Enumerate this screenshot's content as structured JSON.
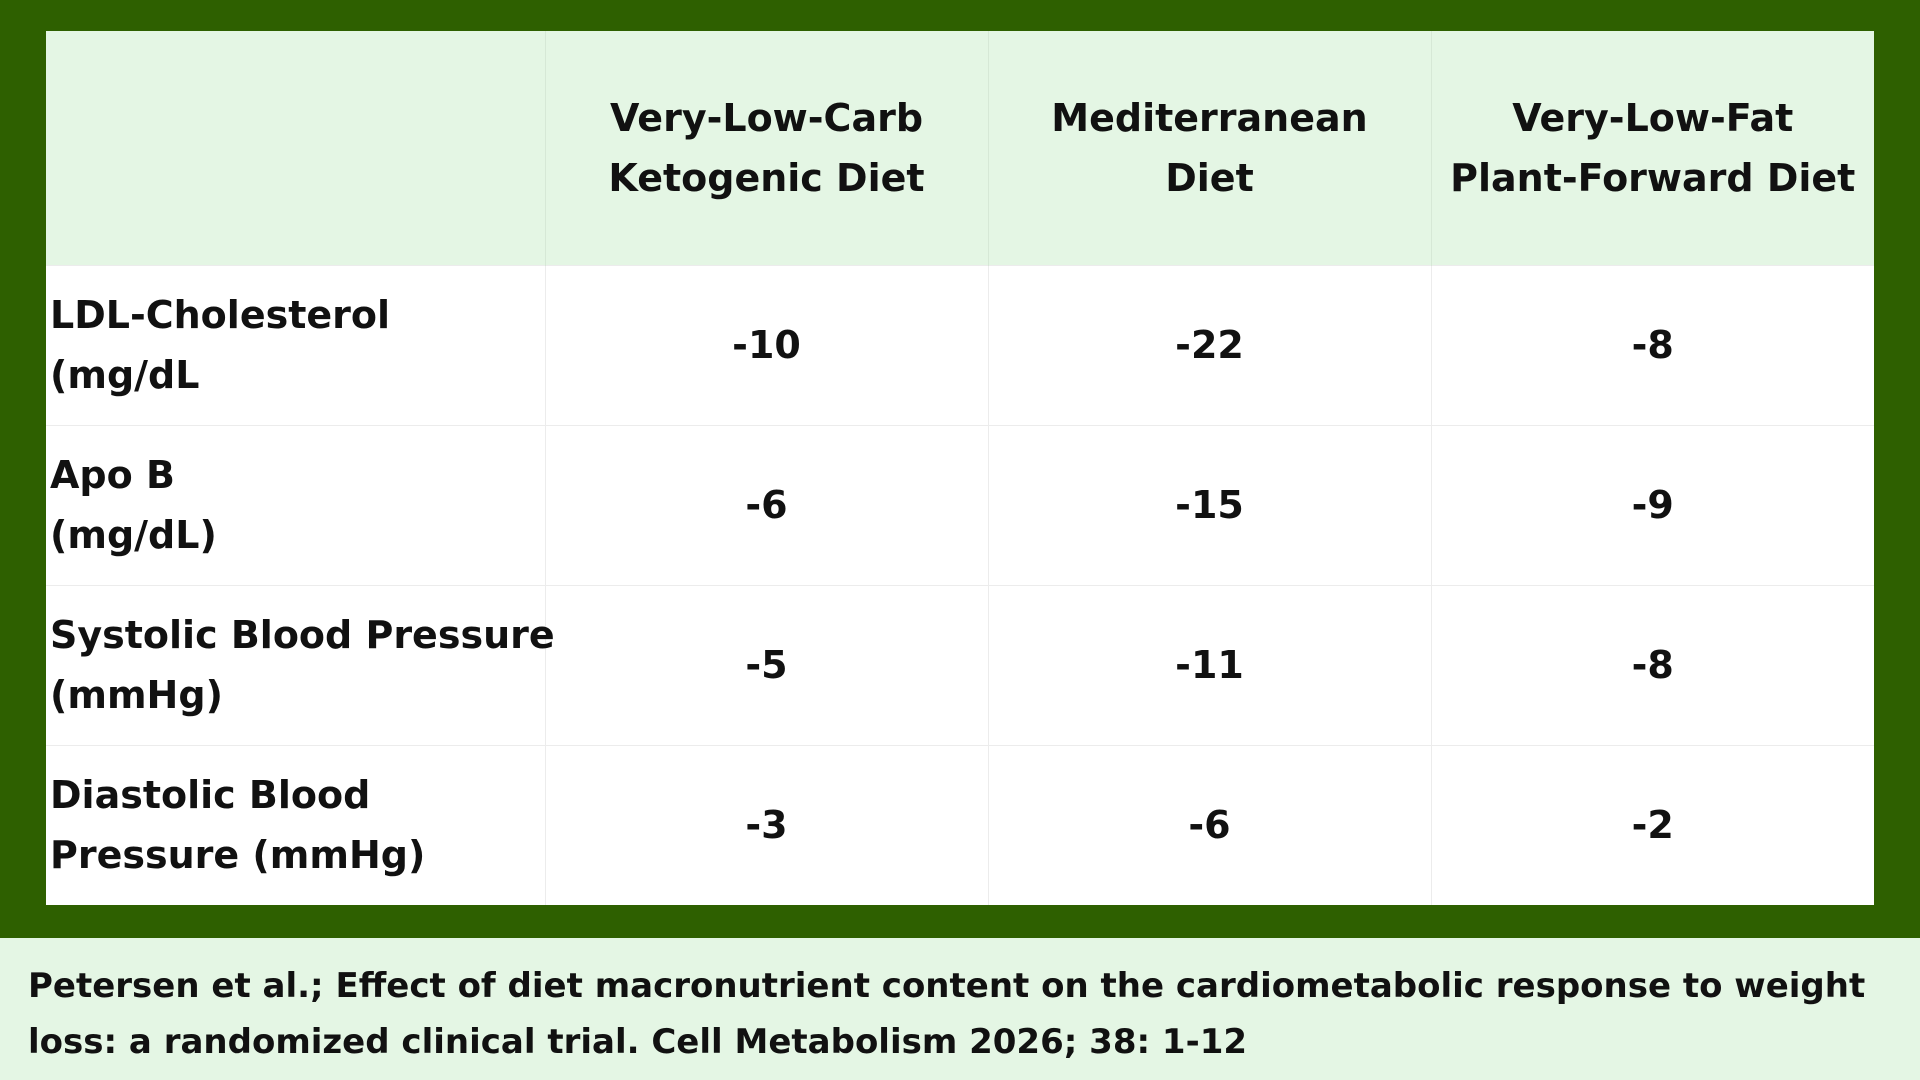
{
  "colors": {
    "frame": "#2e6000",
    "header_bg": "#e4f6e4",
    "body_bg": "#ffffff",
    "text": "#111111"
  },
  "table": {
    "corner": "",
    "columns": [
      {
        "line1": "Very-Low-Carb",
        "line2": "Ketogenic Diet"
      },
      {
        "line1": "Mediterranean",
        "line2": "Diet"
      },
      {
        "line1": "Very-Low-Fat",
        "line2": "Plant-Forward Diet"
      }
    ],
    "rows": [
      {
        "label1": "LDL-Cholesterol",
        "label2": "(mg/dL",
        "values": [
          "-10",
          "-22",
          "-8"
        ]
      },
      {
        "label1": "Apo B",
        "label2": "(mg/dL)",
        "values": [
          "-6",
          "-15",
          "-9"
        ]
      },
      {
        "label1": "Systolic Blood Pressure",
        "label2": "(mmHg)",
        "values": [
          "-5",
          "-11",
          "-8"
        ]
      },
      {
        "label1": "Diastolic Blood",
        "label2": "Pressure (mmHg)",
        "values": [
          "-3",
          "-6",
          "-2"
        ]
      }
    ]
  },
  "citation": {
    "line1": "Petersen et al.; Effect of diet macronutrient content on the cardiometabolic response to weight",
    "line2": "loss: a randomized clinical trial. Cell Metabolism 2026; 38: 1-12"
  }
}
